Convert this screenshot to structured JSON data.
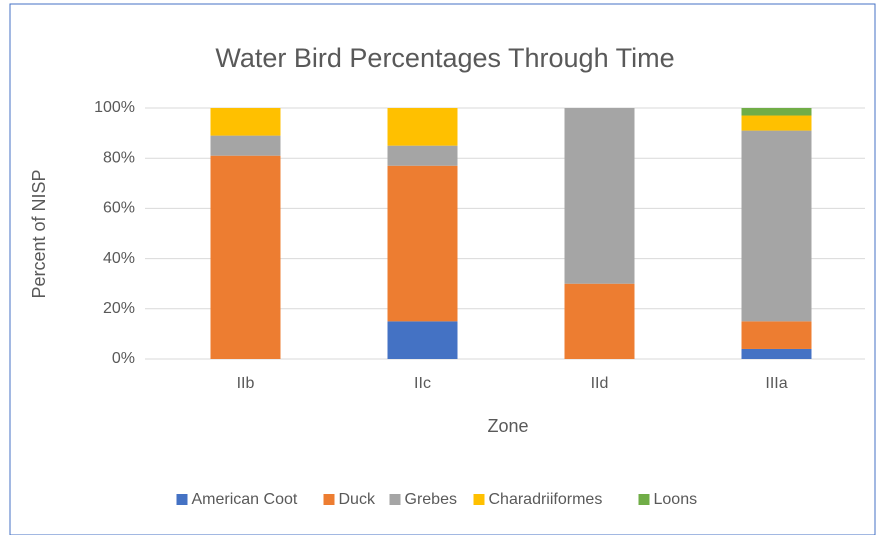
{
  "chart_data": {
    "type": "stacked_bar",
    "title": "Water Bird Percentages Through Time",
    "x_label": "Zone",
    "y_label": "Percent of NISP",
    "categories": [
      "IIb",
      "IIc",
      "IId",
      "IIIa"
    ],
    "series": [
      {
        "name": "American Coot",
        "color": "#4472c4",
        "values": [
          0,
          15,
          0,
          4
        ]
      },
      {
        "name": "Duck",
        "color": "#ed7d31",
        "values": [
          81,
          62,
          30,
          11
        ]
      },
      {
        "name": "Grebes",
        "color": "#a5a5a5",
        "values": [
          8,
          8,
          70,
          76
        ]
      },
      {
        "name": "Charadriiformes",
        "color": "#ffc000",
        "values": [
          11,
          15,
          0,
          6
        ]
      },
      {
        "name": "Loons",
        "color": "#70ad47",
        "values": [
          0,
          0,
          0,
          3
        ]
      }
    ],
    "ylim": [
      0,
      100
    ],
    "yticks": [
      {
        "value": 0,
        "label": "0%"
      },
      {
        "value": 20,
        "label": "20%"
      },
      {
        "value": 40,
        "label": "40%"
      },
      {
        "value": 60,
        "label": "60%"
      },
      {
        "value": 80,
        "label": "80%"
      },
      {
        "value": 100,
        "label": "100%"
      }
    ],
    "grid": true,
    "legend": "bottom"
  }
}
